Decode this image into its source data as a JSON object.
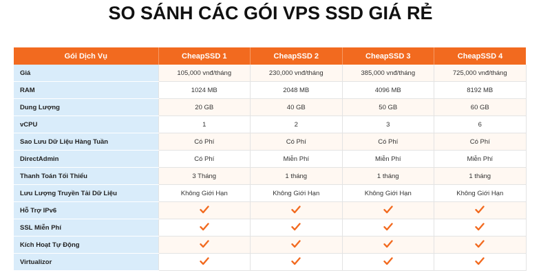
{
  "title": "SO SÁNH CÁC GÓI VPS SSD GIÁ RẺ",
  "colors": {
    "header": "#f26a1f",
    "label_bg": "#d9ecfa",
    "check": "#f26a1f"
  },
  "table": {
    "headers": [
      "Gói Dịch Vụ",
      "CheapSSD 1",
      "CheapSSD 2",
      "CheapSSD 3",
      "CheapSSD 4"
    ],
    "rows": [
      {
        "label": "Giá",
        "cells": [
          "105,000 vnđ/tháng",
          "230,000 vnđ/tháng",
          "385,000 vnđ/tháng",
          "725,000 vnđ/tháng"
        ]
      },
      {
        "label": "RAM",
        "cells": [
          "1024 MB",
          "2048 MB",
          "4096 MB",
          "8192 MB"
        ]
      },
      {
        "label": "Dung Lượng",
        "cells": [
          "20 GB",
          "40 GB",
          "50 GB",
          "60 GB"
        ]
      },
      {
        "label": "vCPU",
        "cells": [
          "1",
          "2",
          "3",
          "6"
        ]
      },
      {
        "label": "Sao Lưu Dữ Liệu Hàng Tuần",
        "cells": [
          "Có Phí",
          "Có Phí",
          "Có Phí",
          "Có Phí"
        ]
      },
      {
        "label": "DirectAdmin",
        "cells": [
          "Có Phí",
          "Miễn Phí",
          "Miễn Phí",
          "Miễn Phí"
        ]
      },
      {
        "label": "Thanh Toán Tối Thiểu",
        "cells": [
          "3 Tháng",
          "1 tháng",
          "1 tháng",
          "1 tháng"
        ]
      },
      {
        "label": "Lưu Lượng Truyền Tải Dữ Liệu",
        "cells": [
          "Không Giới Hạn",
          "Không Giới Hạn",
          "Không Giới Hạn",
          "Không Giới Hạn"
        ]
      },
      {
        "label": "Hỗ Trợ IPv6",
        "check": true
      },
      {
        "label": "SSL Miễn Phí",
        "check": true
      },
      {
        "label": "Kích Hoạt Tự Động",
        "check": true
      },
      {
        "label": "Virtualizor",
        "check": true
      }
    ]
  }
}
